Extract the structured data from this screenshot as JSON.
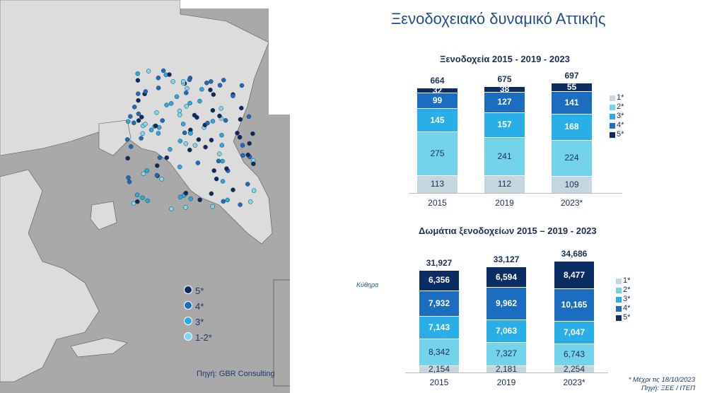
{
  "title": "Ξενοδοχειακό δυναμικό Αττικής",
  "map": {
    "inset_label": "Κύθηρα",
    "source": "Πηγή: GBR Consulting",
    "legend": [
      {
        "label": "5*",
        "color": "#0d2b5e"
      },
      {
        "label": "4*",
        "color": "#1c6dc0"
      },
      {
        "label": "3*",
        "color": "#29abe2"
      },
      {
        "label": "1-2*",
        "color": "#7fd8ef"
      }
    ]
  },
  "chart_data": [
    {
      "type": "bar",
      "stacked": true,
      "title": "Ξενοδοχεία 2015 - 2019 - 2023",
      "categories": [
        "2015",
        "2019",
        "2023*"
      ],
      "totals": [
        "664",
        "675",
        "697"
      ],
      "series": [
        {
          "name": "1*",
          "color": "#c5d6de",
          "values": [
            113,
            112,
            109
          ],
          "labels": [
            "113",
            "112",
            "109"
          ]
        },
        {
          "name": "2*",
          "color": "#73d3ea",
          "values": [
            275,
            241,
            224
          ],
          "labels": [
            "275",
            "241",
            "224"
          ]
        },
        {
          "name": "3*",
          "color": "#2aaee8",
          "values": [
            145,
            157,
            168
          ],
          "labels": [
            "145",
            "157",
            "168"
          ]
        },
        {
          "name": "4*",
          "color": "#1c6dbf",
          "values": [
            99,
            127,
            141
          ],
          "labels": [
            "99",
            "127",
            "141"
          ]
        },
        {
          "name": "5*",
          "color": "#0c2d63",
          "values": [
            32,
            38,
            55
          ],
          "labels": [
            "32",
            "38",
            "55"
          ]
        }
      ]
    },
    {
      "type": "bar",
      "stacked": true,
      "title": "Δωμάτια ξενοδοχείων 2015 – 2019 - 2023",
      "categories": [
        "2015",
        "2019",
        "2023*"
      ],
      "totals": [
        "31,927",
        "33,127",
        "34,686"
      ],
      "series": [
        {
          "name": "1*",
          "color": "#c5d6de",
          "values": [
            2154,
            2181,
            2254
          ],
          "labels": [
            "2,154",
            "2,181",
            "2,254"
          ]
        },
        {
          "name": "2*",
          "color": "#73d3ea",
          "values": [
            8342,
            7327,
            6743
          ],
          "labels": [
            "8,342",
            "7,327",
            "6,743"
          ]
        },
        {
          "name": "3*",
          "color": "#2aaee8",
          "values": [
            7143,
            7063,
            7047
          ],
          "labels": [
            "7,143",
            "7,063",
            "7,047"
          ]
        },
        {
          "name": "4*",
          "color": "#1c6dbf",
          "values": [
            7932,
            9962,
            10165
          ],
          "labels": [
            "7,932",
            "9,962",
            "10,165"
          ]
        },
        {
          "name": "5*",
          "color": "#0c2d63",
          "values": [
            6356,
            6594,
            8477
          ],
          "labels": [
            "6,356",
            "6,594",
            "8,477"
          ]
        }
      ]
    }
  ],
  "footnote": "* Μέχρι τις 18/10/2023",
  "footsource": "Πηγή: ΞΕΕ / ΙΤΕΠ"
}
